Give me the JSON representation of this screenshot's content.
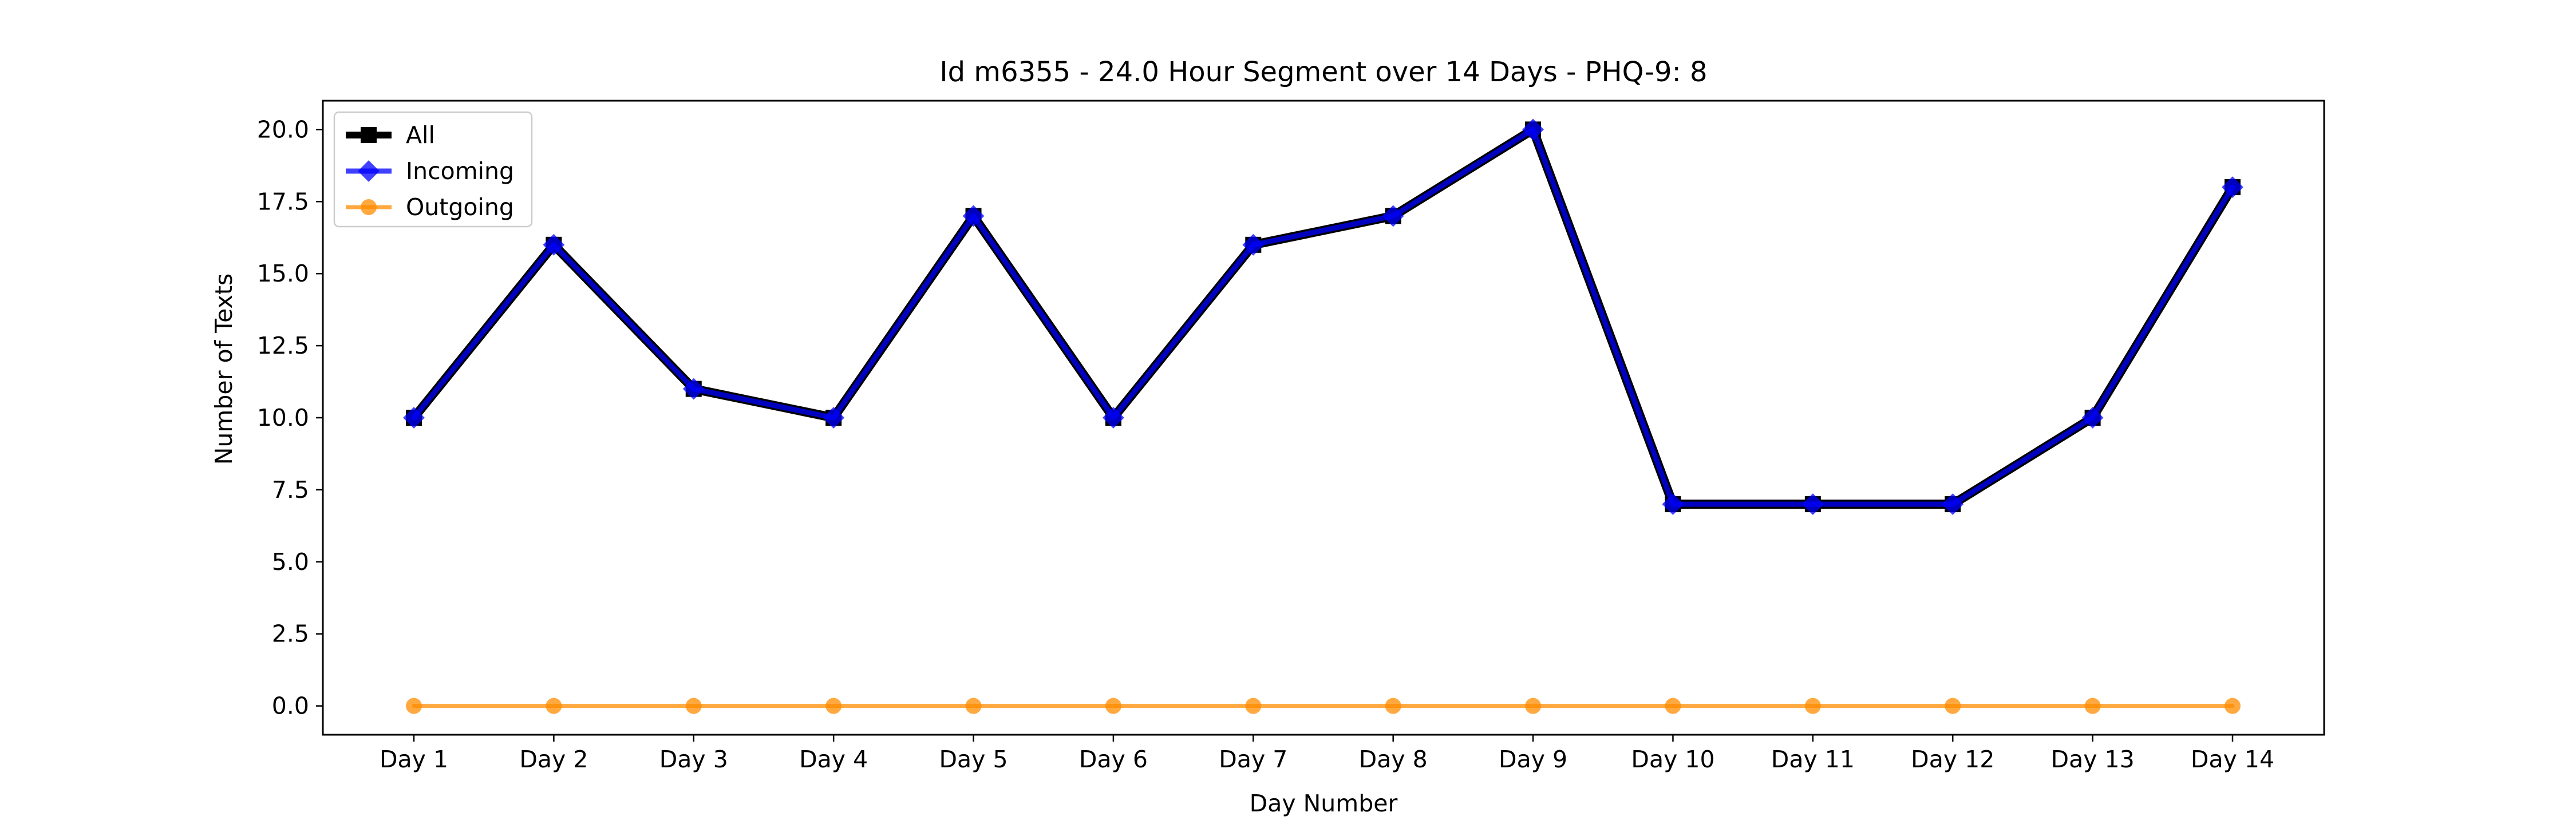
{
  "chart_data": {
    "type": "line",
    "title": "Id m6355 - 24.0 Hour Segment over 14 Days - PHQ-9: 8",
    "xlabel": "Day Number",
    "ylabel": "Number of Texts",
    "categories": [
      "Day 1",
      "Day 2",
      "Day 3",
      "Day 4",
      "Day 5",
      "Day 6",
      "Day 7",
      "Day 8",
      "Day 9",
      "Day 10",
      "Day 11",
      "Day 12",
      "Day 13",
      "Day 14"
    ],
    "ylim": [
      -1.0,
      21.0
    ],
    "yticks": [
      0.0,
      2.5,
      5.0,
      7.5,
      10.0,
      12.5,
      15.0,
      17.5,
      20.0
    ],
    "ytick_labels": [
      "0.0",
      "2.5",
      "5.0",
      "7.5",
      "10.0",
      "12.5",
      "15.0",
      "17.5",
      "20.0"
    ],
    "grid": false,
    "legend_position": "top-left",
    "series": [
      {
        "name": "All",
        "values": [
          10,
          16,
          11,
          10,
          17,
          10,
          16,
          17,
          20,
          7,
          7,
          7,
          10,
          18
        ],
        "color": "#000000",
        "marker": "square"
      },
      {
        "name": "Incoming",
        "values": [
          10,
          16,
          11,
          10,
          17,
          10,
          16,
          17,
          20,
          7,
          7,
          7,
          10,
          18
        ],
        "color": "#0000ff",
        "marker": "diamond"
      },
      {
        "name": "Outgoing",
        "values": [
          0,
          0,
          0,
          0,
          0,
          0,
          0,
          0,
          0,
          0,
          0,
          0,
          0,
          0
        ],
        "color": "#ff8c00",
        "marker": "circle"
      }
    ]
  }
}
